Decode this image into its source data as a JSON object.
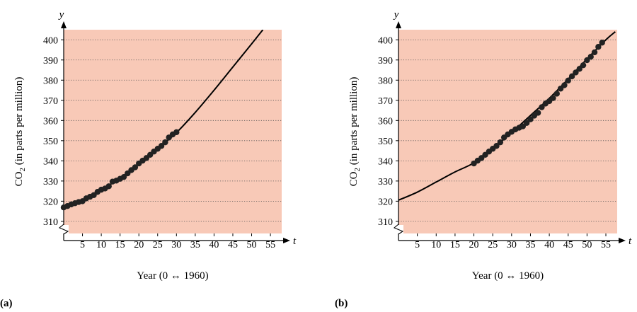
{
  "chart_data": [
    {
      "type": "scatter",
      "panel_label": "(a)",
      "xlabel": "Year (0 ↔ 1960)",
      "ylabel": "CO",
      "ylabel_sub": "2",
      "ylabel_rest": " (in parts per million)",
      "x_axis_var": "t",
      "y_axis_var": "y",
      "xlim": [
        0,
        58
      ],
      "ylim": [
        304,
        405
      ],
      "x_ticks": [
        5,
        10,
        15,
        20,
        25,
        30,
        35,
        40,
        45,
        50,
        55
      ],
      "y_ticks": [
        310,
        320,
        330,
        340,
        350,
        360,
        370,
        380,
        390,
        400
      ],
      "grid": "horizontal dotted",
      "axis_break": "y",
      "background": "#f8c9b7",
      "curve": {
        "x_start": 0,
        "x_end": 53.2,
        "points": [
          [
            0,
            317
          ],
          [
            5,
            320
          ],
          [
            10,
            325.5
          ],
          [
            15,
            331.5
          ],
          [
            20,
            338.5
          ],
          [
            25,
            346
          ],
          [
            30,
            354
          ],
          [
            35,
            364
          ],
          [
            40,
            375
          ],
          [
            45,
            386.5
          ],
          [
            50,
            398
          ],
          [
            53,
            405
          ]
        ]
      },
      "series": [
        {
          "x": [
            0,
            1,
            2,
            3,
            4,
            5,
            6,
            7,
            8,
            9,
            10,
            11,
            12,
            13,
            14,
            15,
            16,
            17,
            18,
            19,
            20,
            21,
            22,
            23,
            24,
            25,
            26,
            27,
            28,
            29,
            30
          ],
          "y": [
            316.9,
            317.6,
            318.4,
            319.0,
            319.6,
            320.0,
            321.4,
            322.2,
            323.0,
            324.6,
            325.7,
            326.3,
            327.4,
            329.7,
            330.2,
            331.1,
            332.0,
            333.8,
            335.4,
            336.8,
            338.7,
            340.1,
            341.4,
            343.0,
            344.6,
            346.0,
            347.4,
            349.2,
            351.6,
            353.1,
            354.2
          ]
        }
      ]
    },
    {
      "type": "scatter",
      "panel_label": "(b)",
      "xlabel": "Year (0 ↔ 1960)",
      "ylabel": "CO",
      "ylabel_sub": "2",
      "ylabel_rest": " (in parts per million)",
      "x_axis_var": "t",
      "y_axis_var": "y",
      "xlim": [
        0,
        58
      ],
      "ylim": [
        304,
        405
      ],
      "x_ticks": [
        5,
        10,
        15,
        20,
        25,
        30,
        35,
        40,
        45,
        50,
        55
      ],
      "y_ticks": [
        310,
        320,
        330,
        340,
        350,
        360,
        370,
        380,
        390,
        400
      ],
      "grid": "horizontal dotted",
      "axis_break": "y",
      "background": "#f8c9b7",
      "curve": {
        "x_start": 0,
        "x_end": 57.5,
        "points": [
          [
            0,
            320.5
          ],
          [
            5,
            324.5
          ],
          [
            10,
            329.5
          ],
          [
            15,
            334.5
          ],
          [
            20,
            339
          ],
          [
            25,
            346
          ],
          [
            30,
            354
          ],
          [
            35,
            362.5
          ],
          [
            40,
            371
          ],
          [
            45,
            380.5
          ],
          [
            50,
            390.5
          ],
          [
            55,
            400
          ],
          [
            57.5,
            404
          ]
        ]
      },
      "series": [
        {
          "x": [
            20,
            21,
            22,
            23,
            24,
            25,
            26,
            27,
            28,
            29,
            30,
            31,
            32,
            33,
            34,
            35,
            36,
            37,
            38,
            39,
            40,
            41,
            42,
            43,
            44,
            45,
            46,
            47,
            48,
            49,
            50,
            51,
            52,
            53,
            54
          ],
          "y": [
            338.7,
            340.1,
            341.4,
            343.0,
            344.6,
            346.0,
            347.4,
            349.2,
            351.6,
            353.1,
            354.4,
            355.6,
            356.4,
            357.1,
            358.8,
            360.6,
            362.4,
            363.8,
            366.6,
            368.4,
            369.6,
            371.1,
            373.3,
            375.8,
            377.5,
            379.8,
            381.9,
            383.8,
            385.6,
            387.4,
            389.9,
            391.6,
            393.8,
            396.5,
            398.6
          ]
        }
      ]
    }
  ]
}
